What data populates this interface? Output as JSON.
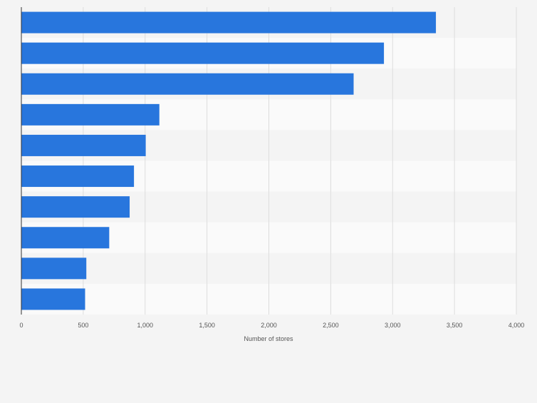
{
  "chart_data": {
    "type": "bar",
    "orientation": "horizontal",
    "categories": [
      "",
      "",
      "",
      "",
      "",
      "",
      "",
      "",
      "",
      ""
    ],
    "values": [
      3350,
      2930,
      2685,
      1115,
      1005,
      910,
      875,
      710,
      525,
      515
    ],
    "title": "",
    "xlabel": "Number of stores",
    "ylabel": "",
    "xlim": [
      0,
      4000
    ],
    "x_ticks": [
      0,
      500,
      1000,
      1500,
      2000,
      2500,
      3000,
      3500,
      4000
    ],
    "x_tick_labels": [
      "0",
      "500",
      "1,000",
      "1,500",
      "2,000",
      "2,500",
      "3,000",
      "3,500",
      "4,000"
    ],
    "grid": "vertical",
    "legend": "none",
    "colors": {
      "bar": "#2876dd",
      "band_light": "#fafafa",
      "band_dark": "#f4f4f4",
      "grid": "#dddddd",
      "axis": "#333333",
      "text": "#555555"
    }
  }
}
